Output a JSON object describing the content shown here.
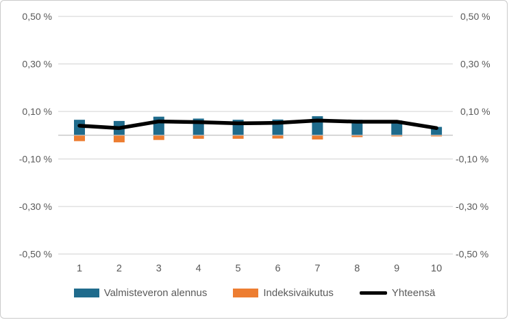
{
  "chart_data": {
    "type": "combo-stacked-bar-line",
    "title": "",
    "categories": [
      "1",
      "2",
      "3",
      "4",
      "5",
      "6",
      "7",
      "8",
      "9",
      "10"
    ],
    "series": [
      {
        "name": "Valmisteveron alennus",
        "type": "bar",
        "color": "#1F6B8C",
        "values": [
          0.065,
          0.06,
          0.078,
          0.07,
          0.065,
          0.066,
          0.08,
          0.065,
          0.062,
          0.035
        ]
      },
      {
        "name": "Indeksivaikutus",
        "type": "bar",
        "color": "#ED7D31",
        "values": [
          -0.025,
          -0.03,
          -0.02,
          -0.015,
          -0.015,
          -0.014,
          -0.018,
          -0.008,
          -0.005,
          -0.005
        ]
      },
      {
        "name": "Yhteensä",
        "type": "line",
        "color": "#000000",
        "values": [
          0.04,
          0.03,
          0.058,
          0.055,
          0.05,
          0.052,
          0.062,
          0.057,
          0.057,
          0.03
        ]
      }
    ],
    "y_axis": {
      "min": -0.5,
      "max": 0.5,
      "tick_values": [
        0.5,
        0.3,
        0.1,
        -0.1,
        -0.3,
        -0.5
      ],
      "tick_labels": [
        "0,50 %",
        "0,30 %",
        "0,10 %",
        "-0,10 %",
        "-0,30 %",
        "-0,50 %"
      ],
      "both_sides": true
    },
    "grid": true,
    "legend_position": "bottom"
  },
  "legend": {
    "items": [
      {
        "label": "Valmisteveron alennus",
        "marker": "rect",
        "color": "#1F6B8C"
      },
      {
        "label": "Indeksivaikutus",
        "marker": "rect",
        "color": "#ED7D31"
      },
      {
        "label": "Yhteensä",
        "marker": "line",
        "color": "#000000"
      }
    ]
  },
  "colors": {
    "grid": "#D9D9D9",
    "axis_line": "#BFBFBF",
    "tick_text": "#595959",
    "border": "#C9C9C9",
    "background": "#FFFFFF"
  }
}
